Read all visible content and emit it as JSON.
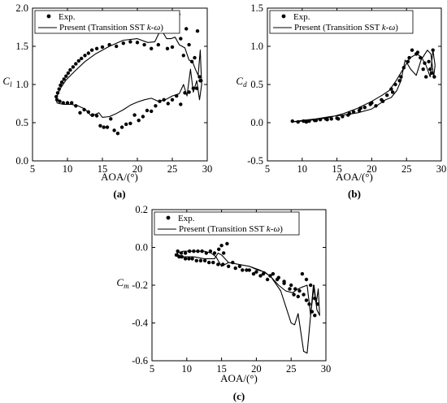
{
  "chart_data": [
    {
      "type": "scatter",
      "panel": "(a)",
      "xlabel": "AOA/(°)",
      "ylabel": "C_l",
      "xlim": [
        5,
        30
      ],
      "ylim": [
        0.0,
        2.0
      ],
      "xticks": [
        "5",
        "10",
        "15",
        "20",
        "25",
        "30"
      ],
      "yticks": [
        "0.0",
        "0.5",
        "1.0",
        "1.5",
        "2.0"
      ],
      "legend_position": "top-left",
      "series": [
        {
          "name": "Exp.",
          "kind": "points",
          "x": [
            8.4,
            8.6,
            8.8,
            9.0,
            9.2,
            9.5,
            9.8,
            10.1,
            10.4,
            10.8,
            11.2,
            11.6,
            12.0,
            12.5,
            13.0,
            13.5,
            14.2,
            15.0,
            16.0,
            17.0,
            18.0,
            19.0,
            20.0,
            21.0,
            22.0,
            23.0,
            23.6,
            24.3,
            25.0,
            25.5,
            25.9,
            26.2,
            26.6,
            27.0,
            27.4,
            27.8,
            28.2,
            28.6,
            29.0,
            8.5,
            8.9,
            9.4,
            10.0,
            10.6,
            11.2,
            11.8,
            12.4,
            13.0,
            13.6,
            14.2,
            14.7,
            15.2,
            15.7,
            16.2,
            16.7,
            17.2,
            17.8,
            18.4,
            19.0,
            19.6,
            20.2,
            20.8,
            21.4,
            22.0,
            22.6,
            23.2,
            23.8,
            24.4,
            25.0,
            25.6,
            26.2,
            26.8,
            27.4,
            28.0,
            28.5,
            28.9,
            29.1
          ],
          "y": [
            0.84,
            0.89,
            0.94,
            0.99,
            1.03,
            1.07,
            1.11,
            1.15,
            1.19,
            1.23,
            1.27,
            1.31,
            1.34,
            1.38,
            1.41,
            1.45,
            1.47,
            1.49,
            1.52,
            1.5,
            1.54,
            1.56,
            1.55,
            1.52,
            1.47,
            1.52,
            1.83,
            1.47,
            1.49,
            1.89,
            1.92,
            1.6,
            1.38,
            1.73,
            1.52,
            1.3,
            1.35,
            1.7,
            1.05,
            0.8,
            0.78,
            0.76,
            0.76,
            0.76,
            0.72,
            0.63,
            0.67,
            0.64,
            0.6,
            0.59,
            0.46,
            0.44,
            0.44,
            0.55,
            0.4,
            0.36,
            0.44,
            0.48,
            0.49,
            0.6,
            0.53,
            0.58,
            0.66,
            0.65,
            0.72,
            0.78,
            0.8,
            0.75,
            0.8,
            0.85,
            0.74,
            0.89,
            0.9,
            0.95,
            0.95,
            1.1,
            1.05
          ]
        },
        {
          "name": "Present (Transition SST k-ω)",
          "kind": "line",
          "x": [
            8.4,
            9.0,
            9.8,
            11.0,
            12.5,
            14.0,
            16.0,
            18.0,
            20.0,
            21.5,
            22.5,
            23.4,
            23.8,
            24.2,
            24.8,
            25.4,
            26.0,
            26.8,
            27.4,
            27.9,
            28.3,
            28.7,
            29.0,
            29.2,
            28.9,
            28.5,
            28.0,
            27.6,
            27.1,
            26.6,
            26.0,
            25.0,
            24.0,
            23.0,
            22.0,
            21.0,
            20.0,
            19.0,
            18.0,
            17.0,
            16.0,
            15.0,
            14.5,
            14.0,
            13.5,
            12.5,
            11.5,
            10.5,
            9.5,
            8.8,
            8.5,
            8.4
          ],
          "y": [
            0.82,
            0.95,
            1.06,
            1.17,
            1.3,
            1.4,
            1.5,
            1.58,
            1.6,
            1.55,
            1.56,
            1.73,
            1.66,
            1.6,
            1.6,
            1.62,
            1.52,
            1.48,
            1.32,
            1.3,
            1.2,
            1.12,
            1.45,
            1.0,
            0.8,
            1.05,
            0.9,
            1.2,
            0.85,
            1.0,
            0.88,
            0.85,
            0.8,
            0.78,
            0.82,
            0.8,
            0.77,
            0.73,
            0.67,
            0.62,
            0.58,
            0.57,
            0.63,
            0.61,
            0.58,
            0.68,
            0.72,
            0.74,
            0.74,
            0.75,
            0.76,
            0.82
          ]
        }
      ]
    },
    {
      "type": "scatter",
      "panel": "(b)",
      "xlabel": "AOA/(°)",
      "ylabel": "C_d",
      "xlim": [
        5,
        30
      ],
      "ylim": [
        -0.5,
        1.5
      ],
      "xticks": [
        "5",
        "10",
        "15",
        "20",
        "25",
        "30"
      ],
      "yticks": [
        "-0.5",
        "0.0",
        "0.5",
        "1.0",
        "1.5"
      ],
      "legend_position": "top-left",
      "series": [
        {
          "name": "Exp.",
          "kind": "points",
          "x": [
            8.6,
            9.4,
            10.2,
            11.0,
            11.8,
            12.6,
            13.4,
            14.2,
            15.0,
            15.8,
            16.6,
            17.4,
            18.2,
            19.0,
            19.8,
            20.6,
            21.4,
            22.2,
            23.0,
            23.4,
            24.0,
            24.6,
            25.2,
            25.8,
            26.4,
            27.0,
            27.4,
            27.8,
            28.2,
            28.6,
            28.8,
            29.0,
            10.6,
            12.0,
            13.6,
            15.2,
            16.8,
            18.4,
            20.0,
            21.6,
            22.8,
            24.2,
            25.4,
            26.6,
            27.6,
            28.4
          ],
          "y": [
            0.02,
            0.01,
            0.02,
            0.02,
            0.03,
            0.04,
            0.05,
            0.05,
            0.06,
            0.08,
            0.1,
            0.14,
            0.16,
            0.2,
            0.24,
            0.22,
            0.3,
            0.36,
            0.4,
            0.5,
            0.55,
            0.72,
            0.8,
            0.95,
            0.9,
            0.85,
            0.7,
            0.6,
            0.8,
            0.65,
            0.95,
            0.6,
            0.01,
            0.03,
            0.04,
            0.05,
            0.12,
            0.19,
            0.26,
            0.28,
            0.44,
            0.6,
            0.85,
            0.92,
            0.78,
            0.7
          ]
        },
        {
          "name": "Present (Transition SST k-ω)",
          "kind": "line",
          "x": [
            8.5,
            10.0,
            12.0,
            14.0,
            16.0,
            18.0,
            20.0,
            21.5,
            22.5,
            23.5,
            24.5,
            25.5,
            26.5,
            27.3,
            28.0,
            28.5,
            28.9,
            29.1,
            28.8,
            28.4,
            27.8,
            27.2,
            26.4,
            25.6,
            24.8,
            24.2,
            23.6,
            22.8,
            22.0,
            21.0,
            20.0,
            18.0,
            16.0,
            14.0,
            12.0,
            10.0,
            8.5
          ],
          "y": [
            0.01,
            0.02,
            0.04,
            0.07,
            0.12,
            0.19,
            0.28,
            0.36,
            0.42,
            0.55,
            0.7,
            0.85,
            0.9,
            0.85,
            0.95,
            0.9,
            0.6,
            0.75,
            0.95,
            0.6,
            0.75,
            0.85,
            0.62,
            0.7,
            0.82,
            0.55,
            0.42,
            0.33,
            0.3,
            0.24,
            0.18,
            0.13,
            0.1,
            0.08,
            0.05,
            0.03,
            0.01
          ]
        }
      ]
    },
    {
      "type": "scatter",
      "panel": "(c)",
      "xlabel": "AOA/(°)",
      "ylabel": "C_m",
      "xlim": [
        5,
        30
      ],
      "ylim": [
        -0.6,
        0.2
      ],
      "xticks": [
        "5",
        "10",
        "15",
        "20",
        "25",
        "30"
      ],
      "yticks": [
        "-0.6",
        "-0.4",
        "-0.2",
        "0.0",
        "0.2"
      ],
      "legend_position": "top-left",
      "series": [
        {
          "name": "Exp.",
          "kind": "points",
          "x": [
            8.5,
            8.9,
            9.3,
            9.8,
            10.3,
            10.8,
            11.4,
            12.0,
            12.6,
            13.2,
            13.8,
            14.5,
            15.2,
            16.0,
            17.0,
            18.0,
            19.0,
            20.0,
            21.0,
            22.0,
            23.0,
            24.0,
            25.0,
            25.6,
            26.2,
            26.8,
            27.2,
            27.6,
            28.0,
            28.4,
            28.8,
            8.7,
            9.2,
            9.8,
            10.4,
            11.0,
            11.6,
            12.2,
            12.8,
            13.4,
            14.0,
            14.6,
            15.0,
            15.3,
            15.8,
            16.6,
            17.6,
            18.6,
            19.6,
            20.6,
            21.6,
            22.4,
            23.2,
            24.0,
            24.8,
            25.4,
            26.0,
            26.6,
            27.2,
            27.8,
            28.4
          ],
          "y": [
            -0.04,
            -0.05,
            -0.05,
            -0.06,
            -0.06,
            -0.06,
            -0.07,
            -0.07,
            -0.07,
            -0.08,
            -0.08,
            -0.09,
            -0.09,
            -0.1,
            -0.11,
            -0.12,
            -0.12,
            -0.13,
            -0.14,
            -0.15,
            -0.17,
            -0.18,
            -0.2,
            -0.22,
            -0.23,
            -0.25,
            -0.28,
            -0.3,
            -0.34,
            -0.36,
            -0.3,
            -0.02,
            -0.03,
            -0.03,
            -0.02,
            -0.02,
            -0.02,
            -0.02,
            -0.03,
            -0.02,
            -0.03,
            -0.01,
            0.01,
            -0.03,
            0.02,
            -0.08,
            -0.1,
            -0.12,
            -0.14,
            -0.15,
            -0.17,
            -0.14,
            -0.16,
            -0.19,
            -0.22,
            -0.25,
            -0.26,
            -0.14,
            -0.17,
            -0.2,
            -0.27
          ]
        },
        {
          "name": "Present (Transition SST k-ω)",
          "kind": "line",
          "x": [
            8.6,
            9.5,
            11.0,
            12.5,
            13.5,
            14.2,
            15.0,
            16.0,
            17.5,
            19.0,
            20.5,
            22.0,
            23.5,
            25.0,
            25.5,
            26.0,
            26.8,
            27.3,
            27.8,
            28.2,
            28.6,
            28.9,
            29.1,
            28.7,
            28.3,
            27.8,
            27.3,
            26.6,
            26.0,
            25.2,
            24.2,
            23.2,
            22.2,
            21.2,
            20.2,
            19.0,
            17.5,
            16.0,
            15.0,
            14.5,
            14.0,
            13.5,
            12.5,
            11.0,
            9.5,
            8.8,
            8.6
          ],
          "y": [
            -0.03,
            -0.02,
            -0.02,
            -0.02,
            -0.03,
            -0.05,
            -0.1,
            -0.08,
            -0.09,
            -0.1,
            -0.12,
            -0.15,
            -0.23,
            -0.4,
            -0.41,
            -0.35,
            -0.55,
            -0.56,
            -0.36,
            -0.2,
            -0.3,
            -0.22,
            -0.36,
            -0.33,
            -0.2,
            -0.36,
            -0.2,
            -0.21,
            -0.22,
            -0.24,
            -0.23,
            -0.2,
            -0.16,
            -0.13,
            -0.12,
            -0.1,
            -0.09,
            -0.08,
            -0.04,
            -0.03,
            -0.06,
            -0.06,
            -0.06,
            -0.05,
            -0.05,
            -0.04,
            -0.03
          ]
        }
      ]
    }
  ]
}
